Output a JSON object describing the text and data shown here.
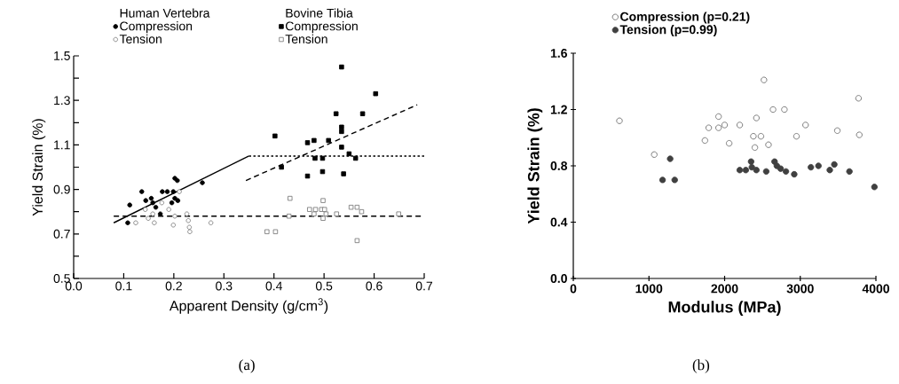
{
  "chart_data": [
    {
      "type": "scatter",
      "xlabel": "Apparent Density (g/cm$^{3}$)",
      "ylabel": "Yield Strain (%)",
      "xlim": [
        0,
        0.7
      ],
      "ylim": [
        0.5,
        1.5
      ],
      "xticks": [
        {
          "value": 0,
          "label": "0.0"
        },
        0.1,
        0.2,
        0.3,
        0.4,
        0.5,
        0.6,
        0.7
      ],
      "yticks": [
        0.5,
        {
          "value": 0.6,
          "label": null
        },
        0.7,
        {
          "value": 0.8,
          "label": null
        },
        0.9,
        {
          "value": 1.0,
          "label": null
        },
        1.1,
        {
          "value": 1.2,
          "label": null
        },
        1.3,
        {
          "value": 1.4,
          "label": null
        },
        1.5
      ],
      "legend": "top",
      "grid": false,
      "annotations": [
        "(a)",
        "Human Vertebra",
        "Bovine Tibia"
      ],
      "series": [
        {
          "name": "Compression",
          "marker": "circle",
          "color": "#000000",
          "x": [
            0.108,
            0.112,
            0.136,
            0.144,
            0.155,
            0.158,
            0.164,
            0.173,
            0.177,
            0.187,
            0.199,
            0.202,
            0.207,
            0.202,
            0.208,
            0.196,
            0.257
          ],
          "values": [
            0.75,
            0.83,
            0.89,
            0.85,
            0.86,
            0.84,
            0.82,
            0.79,
            0.89,
            0.89,
            0.89,
            0.95,
            0.94,
            0.86,
            0.85,
            0.84,
            0.93
          ]
        },
        {
          "name": "Tension",
          "marker": "circle",
          "color": "#808080",
          "x": [
            0.124,
            0.143,
            0.149,
            0.161,
            0.158,
            0.176,
            0.19,
            0.199,
            0.202,
            0.211,
            0.226,
            0.229,
            0.231,
            0.232,
            0.274
          ],
          "values": [
            0.75,
            0.81,
            0.77,
            0.75,
            0.79,
            0.84,
            0.81,
            0.74,
            0.78,
            0.89,
            0.79,
            0.76,
            0.73,
            0.71,
            0.75
          ]
        },
        {
          "name": "Compression",
          "marker": "square",
          "color": "#000000",
          "x": [
            0.402,
            0.415,
            0.467,
            0.467,
            0.48,
            0.482,
            0.497,
            0.497,
            0.509,
            0.524,
            0.535,
            0.535,
            0.535,
            0.535,
            0.539,
            0.55,
            0.563,
            0.577,
            0.603
          ],
          "values": [
            1.14,
            1.0,
            0.96,
            1.11,
            1.12,
            1.04,
            1.04,
            0.98,
            1.12,
            1.24,
            1.45,
            1.18,
            1.16,
            1.09,
            0.97,
            1.06,
            1.04,
            1.24,
            1.33
          ]
        },
        {
          "name": "Tension",
          "marker": "square",
          "color": "#808080",
          "x": [
            0.386,
            0.403,
            0.43,
            0.432,
            0.471,
            0.48,
            0.483,
            0.495,
            0.498,
            0.498,
            0.501,
            0.504,
            0.525,
            0.554,
            0.566,
            0.566,
            0.575,
            0.649
          ],
          "values": [
            0.71,
            0.71,
            0.78,
            0.86,
            0.81,
            0.79,
            0.81,
            0.81,
            0.85,
            0.77,
            0.81,
            0.79,
            0.79,
            0.82,
            0.82,
            0.67,
            0.8,
            0.79
          ]
        },
        {
          "type": "line",
          "line_style": "solid",
          "color": "#000000",
          "x": [
            0.08,
            0.35
          ],
          "values": [
            0.75,
            1.05
          ]
        },
        {
          "type": "line",
          "line_style": "dotted",
          "color": "#000000",
          "x": [
            0.35,
            0.7
          ],
          "values": [
            1.05,
            1.05
          ]
        },
        {
          "type": "line",
          "line_style": "dashed",
          "color": "#000000",
          "x": [
            0.344,
            0.686
          ],
          "values": [
            0.94,
            1.28
          ]
        },
        {
          "type": "line",
          "line_style": "dashed",
          "color": "#000000",
          "x": [
            0.08,
            0.7
          ],
          "values": [
            0.78,
            0.78
          ]
        }
      ]
    },
    {
      "type": "scatter",
      "xlabel": "Modulus (MPa)",
      "ylabel": "Yield Strain (%)",
      "xlim": [
        0,
        4000
      ],
      "ylim": [
        0,
        1.6
      ],
      "xticks": [
        0,
        1000,
        2000,
        3000,
        4000
      ],
      "yticks": [
        {
          "value": 0,
          "label": "0.0"
        },
        0.4,
        0.8,
        1.2,
        1.6
      ],
      "legend": "top left",
      "grid": false,
      "annotations": [
        "(b)"
      ],
      "series": [
        {
          "name": "Compression (p=0.21)",
          "marker": "circle",
          "color": "#707070",
          "x": [
            610,
            1070,
            1740,
            1790,
            1920,
            1920,
            2000,
            2060,
            2200,
            2380,
            2400,
            2420,
            2480,
            2520,
            2580,
            2640,
            2790,
            2950,
            3070,
            3490,
            3770,
            3780
          ],
          "values": [
            1.12,
            0.88,
            0.98,
            1.07,
            1.15,
            1.07,
            1.09,
            0.96,
            1.09,
            1.01,
            0.93,
            1.14,
            1.01,
            1.41,
            0.95,
            1.2,
            1.2,
            1.01,
            1.09,
            1.05,
            1.28,
            1.02
          ]
        },
        {
          "name": "Tension (p=0.99)",
          "marker": "circle",
          "color": "#404040",
          "x": [
            1180,
            1280,
            1340,
            2200,
            2280,
            2350,
            2360,
            2420,
            2550,
            2660,
            2690,
            2740,
            2810,
            2920,
            3140,
            3240,
            3390,
            3450,
            3650,
            3980
          ],
          "values": [
            0.7,
            0.85,
            0.7,
            0.77,
            0.77,
            0.83,
            0.79,
            0.77,
            0.76,
            0.83,
            0.8,
            0.78,
            0.76,
            0.74,
            0.79,
            0.8,
            0.77,
            0.81,
            0.76,
            0.65
          ]
        }
      ]
    }
  ]
}
